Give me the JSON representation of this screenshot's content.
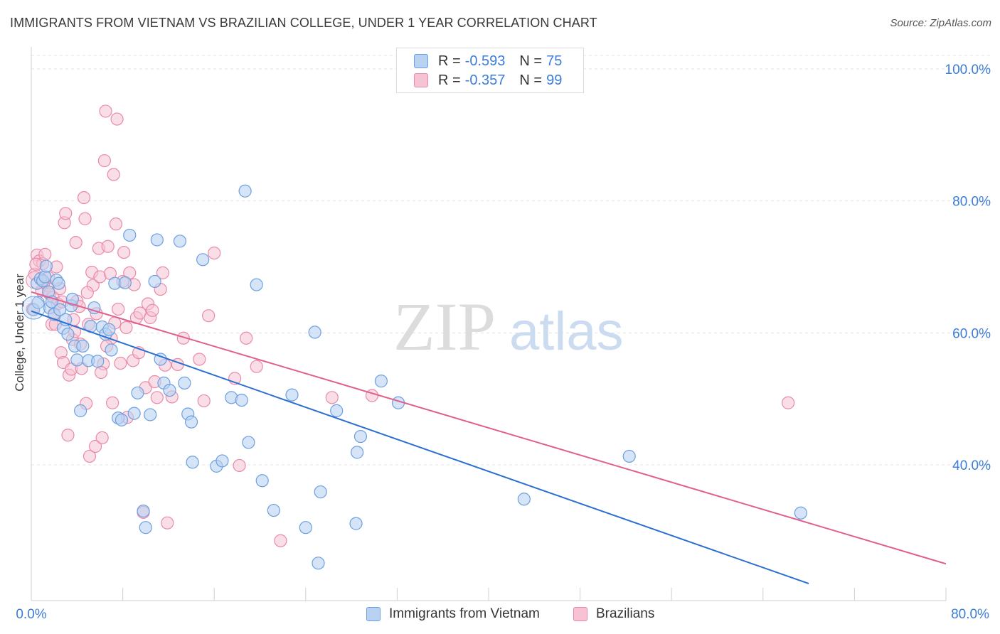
{
  "header": {
    "title": "IMMIGRANTS FROM VIETNAM VS BRAZILIAN COLLEGE, UNDER 1 YEAR CORRELATION CHART",
    "source": "Source: ZipAtlas.com"
  },
  "legend": {
    "rows": [
      {
        "r_label": "R =",
        "r_value": "-0.593",
        "n_label": "N =",
        "n_value": "75"
      },
      {
        "r_label": "R =",
        "r_value": "-0.357",
        "n_label": "N =",
        "n_value": "99"
      }
    ]
  },
  "bottom_legend": [
    "Immigrants from Vietnam",
    "Brazilians"
  ],
  "watermark": {
    "zip": "ZIP",
    "atlas": "atlas"
  },
  "colors": {
    "blue_fill": "#b9d2f2",
    "blue_stroke": "#6d9fe0",
    "blue_line": "#2b6fd1",
    "pink_fill": "#f6c3d3",
    "pink_stroke": "#e98aa8",
    "pink_line": "#e0608c",
    "grid": "#e3e3e3",
    "tick_text": "#3b7dd8"
  },
  "chart_data": {
    "type": "scatter",
    "title": "IMMIGRANTS FROM VIETNAM VS BRAZILIAN COLLEGE, UNDER 1 YEAR CORRELATION CHART",
    "xlabel": "",
    "ylabel": "College, Under 1 year",
    "xlim": [
      0,
      80
    ],
    "ylim": [
      25,
      102
    ],
    "x_tick_labels": [
      "0.0%",
      "80.0%"
    ],
    "y_ticks": [
      40,
      60,
      80,
      100
    ],
    "y_tick_labels": [
      "40.0%",
      "60.0%",
      "80.0%",
      "100.0%"
    ],
    "grid": true,
    "legend_position": "top-center",
    "series": [
      {
        "name": "Immigrants from Vietnam",
        "color": "#6d9fe0",
        "trend": {
          "x": [
            0,
            68
          ],
          "y": [
            63.3,
            22.0
          ]
        },
        "points": [
          [
            0.2,
            63.5
          ],
          [
            0.5,
            67.5
          ],
          [
            0.8,
            68.2
          ],
          [
            1.0,
            67.9
          ],
          [
            1.2,
            68.5
          ],
          [
            1.3,
            70.1
          ],
          [
            1.5,
            66.2
          ],
          [
            1.6,
            63.8
          ],
          [
            1.8,
            64.7
          ],
          [
            2.0,
            62.8
          ],
          [
            2.2,
            68.0
          ],
          [
            2.4,
            67.5
          ],
          [
            2.5,
            63.5
          ],
          [
            2.8,
            60.7
          ],
          [
            3.0,
            62.0
          ],
          [
            3.2,
            59.8
          ],
          [
            3.5,
            64.1
          ],
          [
            3.8,
            58.0
          ],
          [
            4.0,
            55.9
          ],
          [
            4.3,
            48.2
          ],
          [
            4.5,
            58.0
          ],
          [
            5.0,
            55.8
          ],
          [
            5.2,
            61.0
          ],
          [
            5.5,
            63.8
          ],
          [
            5.8,
            55.7
          ],
          [
            6.2,
            60.9
          ],
          [
            6.5,
            59.8
          ],
          [
            6.8,
            60.5
          ],
          [
            7.0,
            57.4
          ],
          [
            7.3,
            67.5
          ],
          [
            7.6,
            47.1
          ],
          [
            7.9,
            46.8
          ],
          [
            8.2,
            67.6
          ],
          [
            8.6,
            74.8
          ],
          [
            9.0,
            47.8
          ],
          [
            9.3,
            50.9
          ],
          [
            9.8,
            33.0
          ],
          [
            10.0,
            30.5
          ],
          [
            10.4,
            47.6
          ],
          [
            10.8,
            67.8
          ],
          [
            11.0,
            74.1
          ],
          [
            11.3,
            56.0
          ],
          [
            11.6,
            52.4
          ],
          [
            12.1,
            51.3
          ],
          [
            13.0,
            73.9
          ],
          [
            13.4,
            52.4
          ],
          [
            13.7,
            47.7
          ],
          [
            14.0,
            46.5
          ],
          [
            14.1,
            40.4
          ],
          [
            15.0,
            71.1
          ],
          [
            16.2,
            39.8
          ],
          [
            16.7,
            40.6
          ],
          [
            17.5,
            50.2
          ],
          [
            18.4,
            49.8
          ],
          [
            18.7,
            81.5
          ],
          [
            19.0,
            43.4
          ],
          [
            19.7,
            67.3
          ],
          [
            20.2,
            37.6
          ],
          [
            21.2,
            33.1
          ],
          [
            22.8,
            50.6
          ],
          [
            24.0,
            30.5
          ],
          [
            24.8,
            60.1
          ],
          [
            25.1,
            25.1
          ],
          [
            25.3,
            35.9
          ],
          [
            26.7,
            48.2
          ],
          [
            28.4,
            31.1
          ],
          [
            28.5,
            41.9
          ],
          [
            28.8,
            44.3
          ],
          [
            30.6,
            52.7
          ],
          [
            32.1,
            49.4
          ],
          [
            43.1,
            34.8
          ],
          [
            52.3,
            41.3
          ],
          [
            67.3,
            32.7
          ],
          [
            0.6,
            64.6
          ],
          [
            3.6,
            65.1
          ]
        ]
      },
      {
        "name": "Brazilians",
        "color": "#e98aa8",
        "trend": {
          "x": [
            0,
            80
          ],
          "y": [
            66.2,
            25.0
          ]
        },
        "points": [
          [
            0.1,
            63.6
          ],
          [
            0.3,
            68.9
          ],
          [
            0.5,
            71.8
          ],
          [
            0.7,
            70.9
          ],
          [
            0.9,
            66.4
          ],
          [
            1.0,
            70.5
          ],
          [
            1.2,
            71.9
          ],
          [
            1.4,
            67.2
          ],
          [
            1.5,
            68.4
          ],
          [
            1.6,
            65.9
          ],
          [
            1.8,
            61.3
          ],
          [
            1.9,
            65.4
          ],
          [
            2.0,
            62.9
          ],
          [
            2.2,
            70.0
          ],
          [
            2.3,
            64.4
          ],
          [
            2.5,
            66.7
          ],
          [
            2.6,
            57.0
          ],
          [
            2.8,
            55.5
          ],
          [
            2.9,
            76.7
          ],
          [
            3.0,
            78.1
          ],
          [
            3.2,
            44.5
          ],
          [
            3.3,
            53.6
          ],
          [
            3.5,
            54.5
          ],
          [
            3.6,
            59.0
          ],
          [
            3.8,
            60.2
          ],
          [
            3.9,
            73.7
          ],
          [
            4.0,
            64.8
          ],
          [
            4.2,
            64.0
          ],
          [
            4.4,
            54.6
          ],
          [
            4.6,
            80.5
          ],
          [
            4.7,
            77.3
          ],
          [
            4.8,
            49.3
          ],
          [
            5.0,
            61.3
          ],
          [
            5.1,
            41.3
          ],
          [
            5.3,
            69.2
          ],
          [
            5.4,
            67.2
          ],
          [
            5.6,
            42.8
          ],
          [
            5.9,
            72.8
          ],
          [
            6.0,
            68.5
          ],
          [
            6.2,
            44.1
          ],
          [
            6.3,
            55.3
          ],
          [
            6.4,
            86.1
          ],
          [
            6.5,
            93.6
          ],
          [
            6.7,
            73.1
          ],
          [
            6.9,
            69.0
          ],
          [
            7.0,
            59.2
          ],
          [
            7.1,
            49.4
          ],
          [
            7.2,
            84.0
          ],
          [
            7.4,
            76.5
          ],
          [
            7.5,
            92.4
          ],
          [
            7.6,
            63.6
          ],
          [
            7.8,
            55.4
          ],
          [
            8.0,
            67.8
          ],
          [
            8.1,
            72.2
          ],
          [
            8.4,
            47.2
          ],
          [
            8.6,
            69.1
          ],
          [
            8.9,
            55.8
          ],
          [
            9.0,
            67.3
          ],
          [
            9.2,
            62.3
          ],
          [
            9.5,
            63.0
          ],
          [
            9.8,
            32.8
          ],
          [
            10.0,
            51.7
          ],
          [
            10.2,
            64.4
          ],
          [
            10.4,
            62.3
          ],
          [
            10.6,
            63.4
          ],
          [
            11.0,
            50.2
          ],
          [
            11.3,
            66.6
          ],
          [
            11.5,
            69.1
          ],
          [
            11.7,
            55.1
          ],
          [
            11.9,
            31.2
          ],
          [
            12.3,
            50.3
          ],
          [
            13.3,
            59.2
          ],
          [
            14.7,
            56.0
          ],
          [
            15.1,
            49.7
          ],
          [
            15.5,
            62.6
          ],
          [
            16.0,
            72.1
          ],
          [
            17.8,
            53.1
          ],
          [
            18.2,
            39.9
          ],
          [
            18.8,
            59.2
          ],
          [
            19.7,
            54.9
          ],
          [
            21.8,
            28.5
          ],
          [
            26.3,
            50.2
          ],
          [
            29.8,
            50.5
          ],
          [
            66.2,
            49.4
          ],
          [
            0.4,
            70.4
          ],
          [
            1.1,
            67.7
          ],
          [
            2.1,
            61.3
          ],
          [
            2.7,
            64.7
          ],
          [
            3.7,
            62.0
          ],
          [
            4.3,
            58.3
          ],
          [
            5.7,
            62.9
          ],
          [
            6.6,
            58.0
          ],
          [
            7.3,
            61.5
          ],
          [
            8.3,
            60.8
          ],
          [
            9.4,
            57.0
          ],
          [
            10.8,
            52.6
          ],
          [
            12.8,
            55.2
          ],
          [
            6.1,
            54.0
          ],
          [
            4.9,
            66.1
          ]
        ]
      }
    ]
  }
}
